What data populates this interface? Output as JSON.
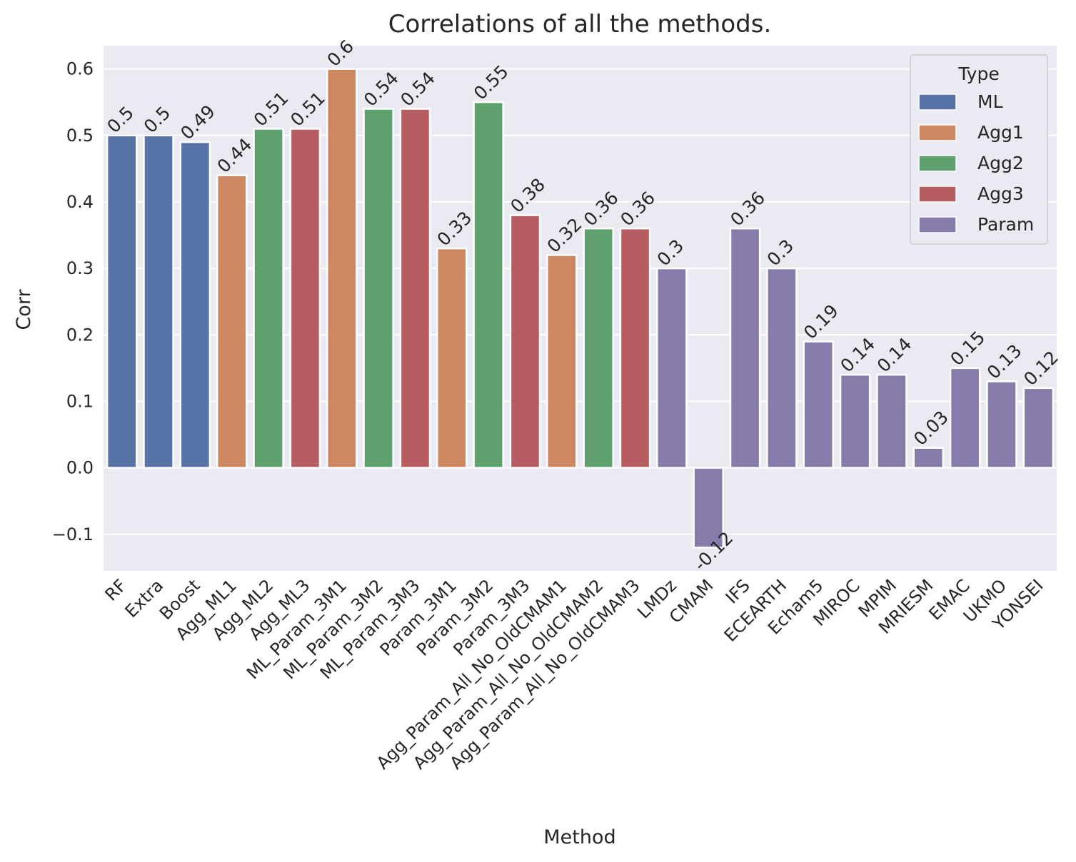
{
  "chart_data": {
    "type": "bar",
    "title": "Correlations of all the methods.",
    "xlabel": "Method",
    "ylabel": "Corr",
    "ylim": [
      -0.155,
      0.635
    ],
    "yticks": [
      -0.1,
      0.0,
      0.1,
      0.2,
      0.3,
      0.4,
      0.5,
      0.6
    ],
    "ytick_labels": [
      "−0.1",
      "0.0",
      "0.1",
      "0.2",
      "0.3",
      "0.4",
      "0.5",
      "0.6"
    ],
    "grid": true,
    "legend": {
      "title": "Type",
      "placement": "top-right",
      "entries": [
        {
          "name": "ML",
          "color": "#5874a6"
        },
        {
          "name": "Agg1",
          "color": "#cd8862"
        },
        {
          "name": "Agg2",
          "color": "#5fa06f"
        },
        {
          "name": "Agg3",
          "color": "#b55d60"
        },
        {
          "name": "Param",
          "color": "#877bac"
        }
      ]
    },
    "categories": [
      "RF",
      "Extra",
      "Boost",
      "Agg_ML1",
      "Agg_ML2",
      "Agg_ML3",
      "ML_Param_3M1",
      "ML_Param_3M2",
      "ML_Param_3M3",
      "Param_3M1",
      "Param_3M2",
      "Param_3M3",
      "Agg_Param_All_No_OldCMAM1",
      "Agg_Param_All_No_OldCMAM2",
      "Agg_Param_All_No_OldCMAM3",
      "LMDz",
      "CMAM",
      "IFS",
      "ECEARTH",
      "Echam5",
      "MIROC",
      "MPIM",
      "MRIESM",
      "EMAC",
      "UKMO",
      "YONSEI"
    ],
    "values": [
      0.5,
      0.5,
      0.49,
      0.44,
      0.51,
      0.51,
      0.6,
      0.54,
      0.54,
      0.33,
      0.55,
      0.38,
      0.32,
      0.36,
      0.36,
      0.3,
      -0.12,
      0.36,
      0.3,
      0.19,
      0.14,
      0.14,
      0.03,
      0.15,
      0.13,
      0.12
    ],
    "value_labels": [
      "0.5",
      "0.5",
      "0.49",
      "0.44",
      "0.51",
      "0.51",
      "0.6",
      "0.54",
      "0.54",
      "0.33",
      "0.55",
      "0.38",
      "0.32",
      "0.36",
      "0.36",
      "0.3",
      "-0.12",
      "0.36",
      "0.3",
      "0.19",
      "0.14",
      "0.14",
      "0.03",
      "0.15",
      "0.13",
      "0.12"
    ],
    "types": [
      "ML",
      "ML",
      "ML",
      "Agg1",
      "Agg2",
      "Agg3",
      "Agg1",
      "Agg2",
      "Agg3",
      "Agg1",
      "Agg2",
      "Agg3",
      "Agg1",
      "Agg2",
      "Agg3",
      "Param",
      "Param",
      "Param",
      "Param",
      "Param",
      "Param",
      "Param",
      "Param",
      "Param",
      "Param",
      "Param"
    ],
    "colors": {
      "plot_background": "#eaeaf2",
      "grid": "#ffffff",
      "text": "#262626"
    }
  }
}
